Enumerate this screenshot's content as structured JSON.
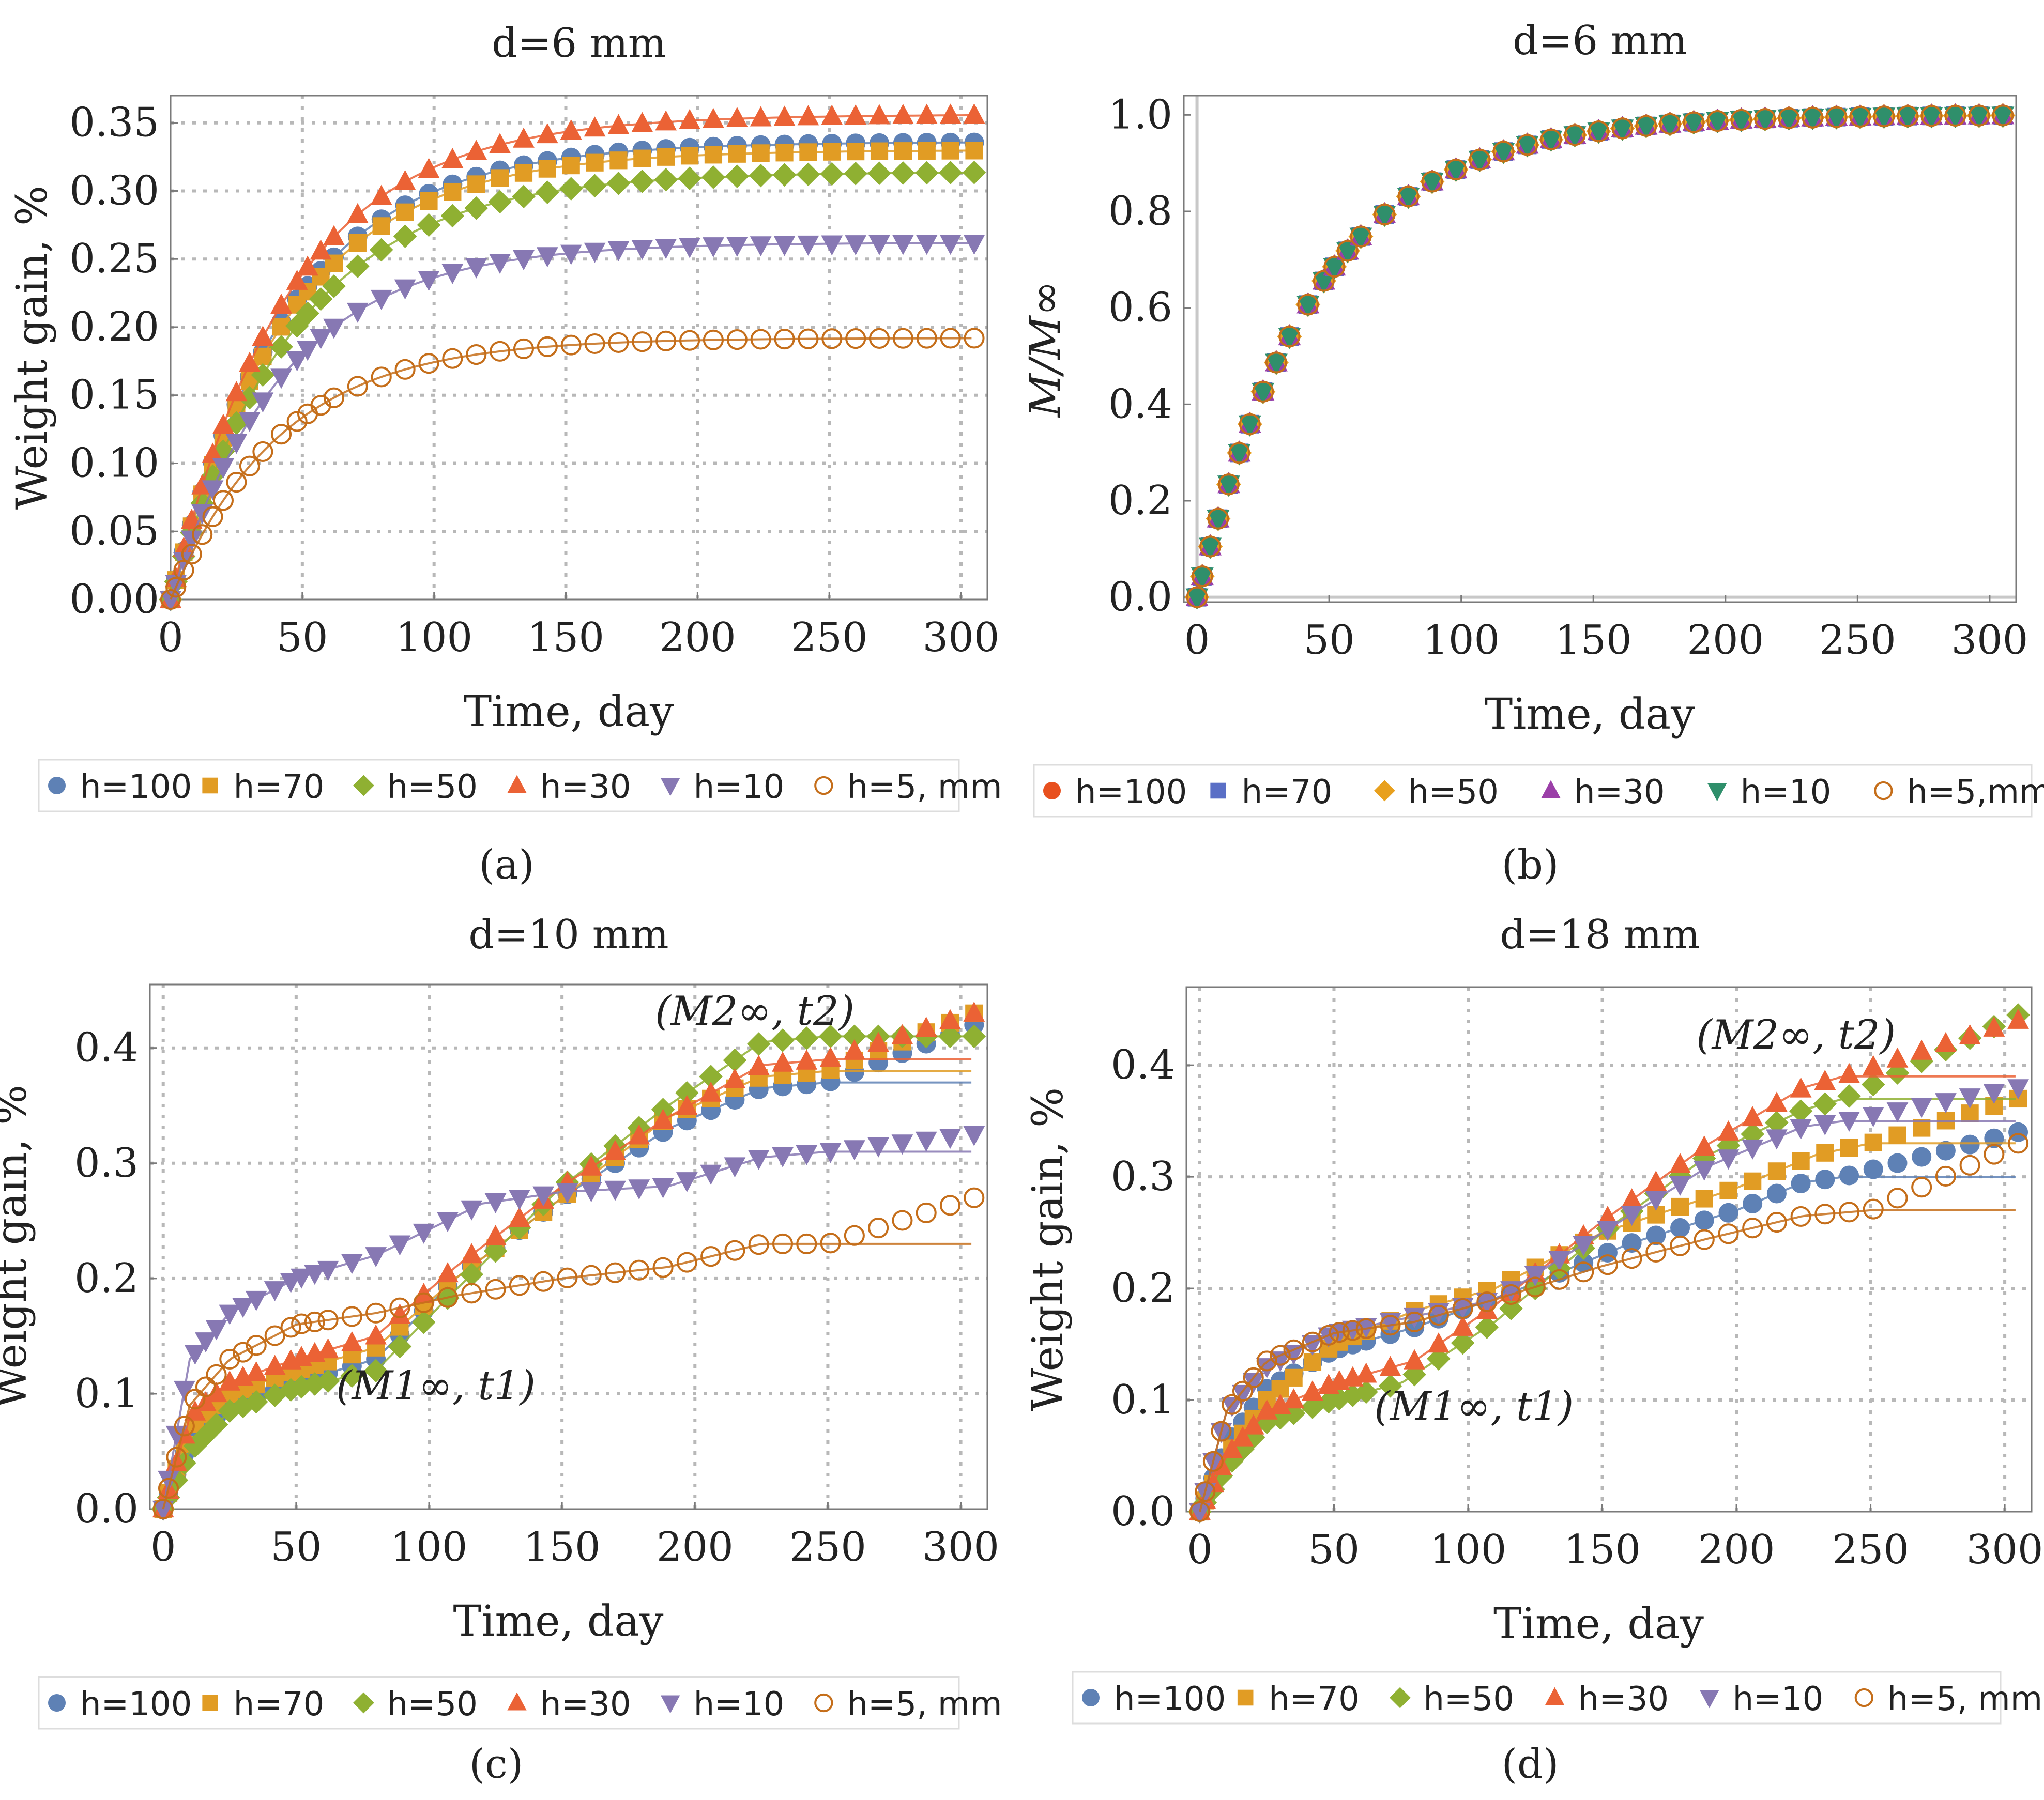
{
  "chart_data": [
    {
      "type": "scatter",
      "panel_label": "(a)",
      "title": "d=6 mm",
      "xlabel": "Time, day",
      "ylabel": "Weight gain, %",
      "xlim": [
        0,
        310
      ],
      "ylim": [
        0,
        0.37
      ],
      "xticks": [
        0,
        50,
        100,
        150,
        200,
        250,
        300
      ],
      "yticks": [
        0.0,
        0.05,
        0.1,
        0.15,
        0.2,
        0.25,
        0.3,
        0.35
      ],
      "ytick_labels": [
        "0.00",
        "0.05",
        "0.10",
        "0.15",
        "0.20",
        "0.25",
        "0.30",
        "0.35"
      ],
      "grid": true,
      "legend_position": "bottom",
      "model": "saturation",
      "series": [
        {
          "name": "h=100",
          "marker": "circle",
          "color": "#5e81b5",
          "minf": 0.336,
          "tau": 45
        },
        {
          "name": "h=70",
          "marker": "square",
          "color": "#e19c24",
          "minf": 0.33,
          "tau": 45
        },
        {
          "name": "h=50",
          "marker": "diamond",
          "color": "#8fb032",
          "minf": 0.314,
          "tau": 47
        },
        {
          "name": "h=30",
          "marker": "triangle-up",
          "color": "#eb6235",
          "minf": 0.356,
          "tau": 45
        },
        {
          "name": "h=10",
          "marker": "triangle-down",
          "color": "#8778b3",
          "minf": 0.262,
          "tau": 43
        },
        {
          "name": "h=5, mm",
          "marker": "open-circle",
          "color": "#c56e1a",
          "minf": 0.192,
          "tau": 42
        }
      ]
    },
    {
      "type": "scatter",
      "panel_label": "(b)",
      "title": "d=6 mm",
      "xlabel": "Time, day",
      "ylabel": "M/M∞",
      "xlim": [
        -5,
        310
      ],
      "ylim": [
        -0.01,
        1.04
      ],
      "xticks": [
        0,
        50,
        100,
        150,
        200,
        250,
        300
      ],
      "yticks": [
        0.0,
        0.2,
        0.4,
        0.6,
        0.8,
        1.0
      ],
      "ytick_labels": [
        "0.0",
        "0.2",
        "0.4",
        "0.6",
        "0.8",
        "1.0"
      ],
      "grid": false,
      "legend_position": "bottom",
      "model": "normalized",
      "tau": 45,
      "series": [
        {
          "name": "h=100",
          "marker": "circle",
          "color": "#e8501e"
        },
        {
          "name": "h=70",
          "marker": "square",
          "color": "#5a6fc6"
        },
        {
          "name": "h=50",
          "marker": "diamond",
          "color": "#e8a01e"
        },
        {
          "name": "h=30",
          "marker": "triangle-up",
          "color": "#9b3fa8"
        },
        {
          "name": "h=10",
          "marker": "triangle-down",
          "color": "#2f8f6b"
        },
        {
          "name": "h=5,mm",
          "marker": "open-circle",
          "color": "#c56e1a"
        }
      ]
    },
    {
      "type": "scatter",
      "panel_label": "(c)",
      "title": "d=10 mm",
      "xlabel": "Time, day",
      "ylabel": "Weight gain, %",
      "xlim": [
        -5,
        310
      ],
      "ylim": [
        0,
        0.455
      ],
      "xticks": [
        0,
        50,
        100,
        150,
        200,
        250,
        300
      ],
      "yticks": [
        0.0,
        0.1,
        0.2,
        0.3,
        0.4
      ],
      "ytick_labels": [
        "0.0",
        "0.1",
        "0.2",
        "0.3",
        "0.4"
      ],
      "grid": true,
      "legend_position": "bottom",
      "model": "two-stage",
      "annotations": [
        {
          "text": "(M1∞, t1)",
          "x": 65,
          "y": 0.095
        },
        {
          "text": "(M2∞, t2)",
          "x": 185,
          "y": 0.42
        }
      ],
      "series": [
        {
          "name": "h=100",
          "marker": "circle",
          "color": "#5e81b5",
          "p": [
            [
              0,
              0
            ],
            [
              10,
              0.06
            ],
            [
              25,
              0.09
            ],
            [
              50,
              0.11
            ],
            [
              80,
              0.13
            ],
            [
              110,
              0.2
            ],
            [
              150,
              0.27
            ],
            [
              190,
              0.33
            ],
            [
              225,
              0.365
            ],
            [
              250,
              0.37
            ],
            [
              305,
              0.37
            ]
          ],
          "e": [
            [
              250,
              0.37
            ],
            [
              305,
              0.42
            ]
          ]
        },
        {
          "name": "h=70",
          "marker": "square",
          "color": "#e19c24",
          "p": [
            [
              0,
              0
            ],
            [
              10,
              0.07
            ],
            [
              25,
              0.1
            ],
            [
              50,
              0.12
            ],
            [
              80,
              0.14
            ],
            [
              110,
              0.2
            ],
            [
              150,
              0.27
            ],
            [
              190,
              0.34
            ],
            [
              225,
              0.375
            ],
            [
              250,
              0.38
            ],
            [
              305,
              0.38
            ]
          ],
          "e": [
            [
              250,
              0.38
            ],
            [
              305,
              0.43
            ]
          ]
        },
        {
          "name": "h=50",
          "marker": "diamond",
          "color": "#8fb032",
          "p": [
            [
              0,
              0
            ],
            [
              10,
              0.05
            ],
            [
              25,
              0.085
            ],
            [
              50,
              0.105
            ],
            [
              80,
              0.12
            ],
            [
              110,
              0.19
            ],
            [
              150,
              0.28
            ],
            [
              190,
              0.35
            ],
            [
              225,
              0.405
            ],
            [
              250,
              0.41
            ],
            [
              305,
              0.41
            ]
          ],
          "e": [
            [
              250,
              0.41
            ],
            [
              305,
              0.41
            ]
          ]
        },
        {
          "name": "h=30",
          "marker": "triangle-up",
          "color": "#eb6235",
          "p": [
            [
              0,
              0
            ],
            [
              10,
              0.08
            ],
            [
              25,
              0.11
            ],
            [
              50,
              0.13
            ],
            [
              80,
              0.15
            ],
            [
              110,
              0.21
            ],
            [
              150,
              0.28
            ],
            [
              190,
              0.34
            ],
            [
              225,
              0.385
            ],
            [
              250,
              0.39
            ],
            [
              305,
              0.39
            ]
          ],
          "e": [
            [
              250,
              0.39
            ],
            [
              305,
              0.43
            ]
          ]
        },
        {
          "name": "h=10",
          "marker": "triangle-down",
          "color": "#8778b3",
          "p": [
            [
              0,
              0
            ],
            [
              10,
              0.13
            ],
            [
              25,
              0.17
            ],
            [
              50,
              0.2
            ],
            [
              80,
              0.22
            ],
            [
              120,
              0.265
            ],
            [
              150,
              0.275
            ],
            [
              190,
              0.28
            ],
            [
              225,
              0.305
            ],
            [
              250,
              0.31
            ],
            [
              305,
              0.31
            ]
          ],
          "e": [
            [
              250,
              0.31
            ],
            [
              305,
              0.325
            ]
          ]
        },
        {
          "name": "h=5, mm",
          "marker": "open-circle",
          "color": "#c56e1a",
          "p": [
            [
              0,
              0
            ],
            [
              10,
              0.09
            ],
            [
              25,
              0.13
            ],
            [
              50,
              0.16
            ],
            [
              80,
              0.17
            ],
            [
              110,
              0.185
            ],
            [
              150,
              0.2
            ],
            [
              190,
              0.21
            ],
            [
              225,
              0.23
            ],
            [
              250,
              0.23
            ],
            [
              305,
              0.23
            ]
          ],
          "e": [
            [
              250,
              0.23
            ],
            [
              305,
              0.27
            ]
          ]
        }
      ]
    },
    {
      "type": "scatter",
      "panel_label": "(d)",
      "title": "d=18 mm",
      "xlabel": "Time, day",
      "ylabel": "Weight gain, %",
      "xlim": [
        -5,
        310
      ],
      "ylim": [
        0,
        0.47
      ],
      "xticks": [
        0,
        50,
        100,
        150,
        200,
        250,
        300
      ],
      "yticks": [
        0.0,
        0.1,
        0.2,
        0.3,
        0.4
      ],
      "ytick_labels": [
        "0.0",
        "0.1",
        "0.2",
        "0.3",
        "0.4"
      ],
      "grid": true,
      "legend_position": "bottom",
      "model": "two-stage",
      "annotations": [
        {
          "text": "(M1∞, t1)",
          "x": 65,
          "y": 0.082
        },
        {
          "text": "(M2∞, t2)",
          "x": 185,
          "y": 0.415
        }
      ],
      "series": [
        {
          "name": "h=100",
          "marker": "circle",
          "color": "#5e81b5",
          "p": [
            [
              0,
              0
            ],
            [
              10,
              0.06
            ],
            [
              25,
              0.11
            ],
            [
              50,
              0.145
            ],
            [
              80,
              0.165
            ],
            [
              120,
              0.2
            ],
            [
              160,
              0.24
            ],
            [
              200,
              0.27
            ],
            [
              225,
              0.295
            ],
            [
              240,
              0.3
            ],
            [
              305,
              0.3
            ]
          ],
          "e": [
            [
              240,
              0.3
            ],
            [
              305,
              0.34
            ]
          ]
        },
        {
          "name": "h=70",
          "marker": "square",
          "color": "#e19c24",
          "p": [
            [
              0,
              0
            ],
            [
              10,
              0.05
            ],
            [
              25,
              0.1
            ],
            [
              50,
              0.15
            ],
            [
              80,
              0.18
            ],
            [
              110,
              0.2
            ],
            [
              150,
              0.25
            ],
            [
              200,
              0.29
            ],
            [
              230,
              0.32
            ],
            [
              250,
              0.33
            ],
            [
              305,
              0.33
            ]
          ],
          "e": [
            [
              250,
              0.33
            ],
            [
              305,
              0.37
            ]
          ]
        },
        {
          "name": "h=50",
          "marker": "diamond",
          "color": "#8fb032",
          "p": [
            [
              0,
              0
            ],
            [
              10,
              0.04
            ],
            [
              25,
              0.08
            ],
            [
              50,
              0.1
            ],
            [
              75,
              0.115
            ],
            [
              110,
              0.17
            ],
            [
              150,
              0.25
            ],
            [
              190,
              0.32
            ],
            [
              225,
              0.36
            ],
            [
              240,
              0.37
            ],
            [
              305,
              0.37
            ]
          ],
          "e": [
            [
              240,
              0.37
            ],
            [
              305,
              0.445
            ]
          ]
        },
        {
          "name": "h=30",
          "marker": "triangle-up",
          "color": "#eb6235",
          "p": [
            [
              0,
              0
            ],
            [
              10,
              0.05
            ],
            [
              25,
              0.09
            ],
            [
              50,
              0.115
            ],
            [
              80,
              0.135
            ],
            [
              110,
              0.185
            ],
            [
              150,
              0.26
            ],
            [
              190,
              0.33
            ],
            [
              225,
              0.38
            ],
            [
              240,
              0.39
            ],
            [
              305,
              0.39
            ]
          ],
          "e": [
            [
              240,
              0.39
            ],
            [
              305,
              0.44
            ]
          ]
        },
        {
          "name": "h=10",
          "marker": "triangle-down",
          "color": "#8778b3",
          "p": [
            [
              0,
              0
            ],
            [
              10,
              0.09
            ],
            [
              25,
              0.13
            ],
            [
              50,
              0.16
            ],
            [
              80,
              0.175
            ],
            [
              110,
              0.19
            ],
            [
              150,
              0.25
            ],
            [
              190,
              0.31
            ],
            [
              225,
              0.345
            ],
            [
              240,
              0.35
            ],
            [
              305,
              0.35
            ]
          ],
          "e": [
            [
              240,
              0.35
            ],
            [
              305,
              0.38
            ]
          ]
        },
        {
          "name": "h=5, mm",
          "marker": "open-circle",
          "color": "#c56e1a",
          "p": [
            [
              0,
              0
            ],
            [
              10,
              0.09
            ],
            [
              25,
              0.135
            ],
            [
              50,
              0.16
            ],
            [
              80,
              0.17
            ],
            [
              110,
              0.19
            ],
            [
              150,
              0.22
            ],
            [
              190,
              0.245
            ],
            [
              225,
              0.265
            ],
            [
              250,
              0.27
            ],
            [
              305,
              0.27
            ]
          ],
          "e": [
            [
              250,
              0.27
            ],
            [
              305,
              0.33
            ]
          ]
        }
      ]
    }
  ]
}
